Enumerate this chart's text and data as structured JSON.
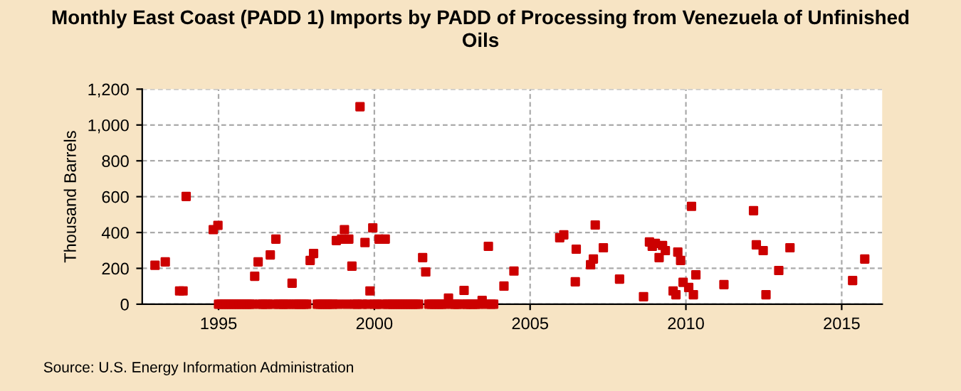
{
  "chart_data": {
    "type": "scatter",
    "title": "Monthly East Coast (PADD 1) Imports by PADD of Processing from Venezuela of Unfinished\nOils",
    "ylabel": "Thousand Barrels",
    "annotations": [
      "Source: U.S. Energy Information Administration"
    ],
    "marker": "square",
    "grid": true,
    "legend": false,
    "xlim": [
      1992.55,
      2016.3
    ],
    "xticks": [
      1995,
      2000,
      2005,
      2010,
      2015
    ],
    "ylim": [
      0,
      1200
    ],
    "yticks": [
      0,
      200,
      400,
      600,
      800,
      {
        "value": 1000,
        "label": "1,000"
      },
      {
        "value": 1200,
        "label": "1,200"
      }
    ],
    "series": [
      {
        "color": "#cc0000",
        "x": [
          1992.96,
          1993.29,
          1993.75,
          1993.86,
          1993.96,
          1994.83,
          1994.98,
          1996.16,
          1996.27,
          1996.66,
          1996.84,
          1997.36,
          1997.94,
          1998.05,
          1998.78,
          1998.95,
          1999.04,
          1999.18,
          1999.28,
          1999.54,
          1999.7,
          1999.86,
          1999.95,
          2000.15,
          2000.35,
          2001.55,
          2001.65,
          2002.38,
          2002.88,
          2003.46,
          2003.66,
          2004.16,
          2004.48,
          2005.95,
          2006.08,
          2006.45,
          2006.48,
          2006.94,
          2007.03,
          2007.09,
          2007.35,
          2007.87,
          2008.64,
          2008.83,
          2008.92,
          2009.02,
          2009.14,
          2009.25,
          2009.34,
          2009.59,
          2009.68,
          2009.74,
          2009.83,
          2009.91,
          2010.09,
          2010.18,
          2010.24,
          2010.32,
          2011.22,
          2012.17,
          2012.26,
          2012.48,
          2012.57,
          2012.98,
          2013.34,
          2015.35,
          2015.74,
          1995.0,
          1995.08,
          1995.17,
          1995.25,
          1995.33,
          1995.42,
          1995.5,
          1995.58,
          1995.67,
          1995.75,
          1995.83,
          1995.92,
          1996.0,
          1996.08,
          1996.33,
          1996.42,
          1996.5,
          1996.58,
          1996.75,
          1996.92,
          1997.0,
          1997.08,
          1997.17,
          1997.25,
          1997.42,
          1997.5,
          1997.58,
          1997.67,
          1997.75,
          1997.83,
          1998.17,
          1998.25,
          1998.33,
          1998.42,
          1998.5,
          1998.58,
          1998.67,
          1998.85,
          1999.12,
          1999.37,
          1999.45,
          1999.62,
          1999.78,
          2000.0,
          2000.08,
          2000.25,
          2000.42,
          2000.5,
          2000.58,
          2000.67,
          2000.75,
          2000.83,
          2000.92,
          2001.0,
          2001.08,
          2001.17,
          2001.25,
          2001.33,
          2001.42,
          2001.75,
          2001.83,
          2001.92,
          2002.0,
          2002.08,
          2002.17,
          2002.25,
          2002.5,
          2002.58,
          2002.67,
          2002.75,
          2002.96,
          2003.0,
          2003.08,
          2003.17,
          2003.25,
          2003.33,
          2003.58,
          2003.75,
          2003.83
        ],
        "values": [
          217,
          236,
          74,
          74,
          601,
          416,
          440,
          156,
          236,
          275,
          363,
          117,
          244,
          283,
          355,
          363,
          416,
          363,
          212,
          1102,
          344,
          74,
          426,
          363,
          363,
          260,
          180,
          34,
          77,
          21,
          323,
          101,
          185,
          371,
          387,
          125,
          307,
          220,
          252,
          442,
          315,
          140,
          42,
          347,
          323,
          339,
          260,
          328,
          299,
          74,
          53,
          291,
          244,
          122,
          93,
          546,
          53,
          164,
          109,
          522,
          331,
          299,
          53,
          188,
          315,
          132,
          252,
          0,
          0,
          0,
          0,
          0,
          0,
          0,
          0,
          0,
          0,
          0,
          0,
          0,
          0,
          0,
          0,
          0,
          0,
          0,
          0,
          0,
          0,
          0,
          0,
          0,
          0,
          0,
          0,
          0,
          0,
          0,
          0,
          0,
          0,
          0,
          0,
          0,
          0,
          0,
          0,
          0,
          0,
          0,
          0,
          0,
          0,
          0,
          0,
          0,
          0,
          0,
          0,
          0,
          0,
          0,
          0,
          0,
          0,
          0,
          0,
          0,
          0,
          0,
          0,
          0,
          0,
          0,
          0,
          0,
          0,
          0,
          0,
          0,
          0,
          0,
          0,
          0,
          0,
          0
        ]
      }
    ]
  }
}
